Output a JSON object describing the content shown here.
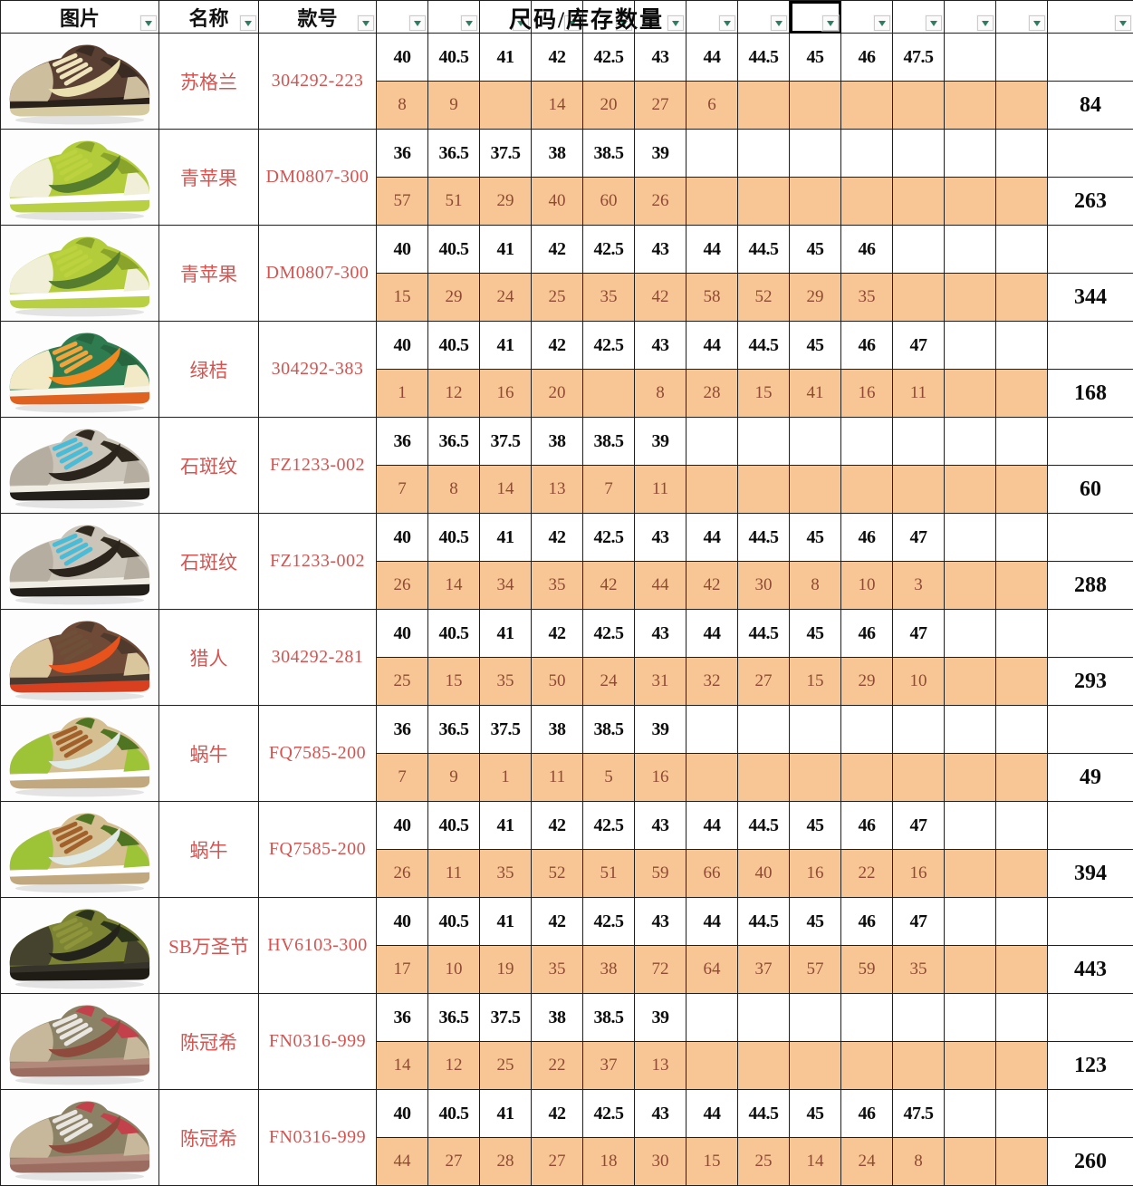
{
  "header": {
    "image_label": "图片",
    "name_label": "名称",
    "code_label": "款号",
    "size_stock_label": "尺码/库存数量"
  },
  "colors": {
    "quantity_bg": "#F8C694",
    "quantity_text": "#8E4A33",
    "label_red": "#D25552",
    "grid_line": "#1f1f1f",
    "dropdown_arrow_green": "#2E7D62"
  },
  "table": {
    "size_column_count": 13,
    "rows": [
      {
        "name": "苏格兰",
        "code": "304292-223",
        "sizes": [
          "40",
          "40.5",
          "41",
          "42",
          "42.5",
          "43",
          "44",
          "44.5",
          "45",
          "46",
          "47.5",
          "",
          ""
        ],
        "qty": [
          "8",
          "9",
          "",
          "14",
          "20",
          "27",
          "6",
          "",
          "",
          "",
          "",
          "",
          ""
        ],
        "total": "84",
        "shoe": {
          "body": "#5A4032",
          "panel": "#CDBF9E",
          "swoosh": "#EADFAE",
          "lace": "#EFE3BC",
          "mid": "#2A211B",
          "out": "#D6CBA0",
          "collar": "#3A2C23"
        }
      },
      {
        "name": "青苹果",
        "code": "DM0807-300",
        "sizes": [
          "36",
          "36.5",
          "37.5",
          "38",
          "38.5",
          "39",
          "",
          "",
          "",
          "",
          "",
          "",
          ""
        ],
        "qty": [
          "57",
          "51",
          "29",
          "40",
          "60",
          "26",
          "",
          "",
          "",
          "",
          "",
          "",
          ""
        ],
        "total": "263",
        "shoe": {
          "body": "#B3CC39",
          "panel": "#F2EFD9",
          "swoosh": "#567D2E",
          "lace": "#BCD23F",
          "mid": "#FFFFFF",
          "out": "#B9D044",
          "collar": "#89A32B"
        }
      },
      {
        "name": "青苹果",
        "code": "DM0807-300",
        "sizes": [
          "40",
          "40.5",
          "41",
          "42",
          "42.5",
          "43",
          "44",
          "44.5",
          "45",
          "46",
          "",
          "",
          ""
        ],
        "qty": [
          "15",
          "29",
          "24",
          "25",
          "35",
          "42",
          "58",
          "52",
          "29",
          "35",
          "",
          "",
          ""
        ],
        "total": "344",
        "shoe": {
          "body": "#B3CC39",
          "panel": "#F2EFD9",
          "swoosh": "#567D2E",
          "lace": "#BCD23F",
          "mid": "#FFFFFF",
          "out": "#B9D044",
          "collar": "#89A32B"
        }
      },
      {
        "name": "绿桔",
        "code": "304292-383",
        "sizes": [
          "40",
          "40.5",
          "41",
          "42",
          "42.5",
          "43",
          "44",
          "44.5",
          "45",
          "46",
          "47",
          "",
          ""
        ],
        "qty": [
          "1",
          "12",
          "16",
          "20",
          "",
          "8",
          "28",
          "15",
          "41",
          "16",
          "11",
          "",
          ""
        ],
        "total": "168",
        "shoe": {
          "body": "#2F7C50",
          "panel": "#F2E9C6",
          "swoosh": "#F28A1F",
          "lace": "#F2A43C",
          "mid": "#F7F4E8",
          "out": "#E06220",
          "collar": "#27663F"
        }
      },
      {
        "name": "石斑纹",
        "code": "FZ1233-002",
        "sizes": [
          "36",
          "36.5",
          "37.5",
          "38",
          "38.5",
          "39",
          "",
          "",
          "",
          "",
          "",
          "",
          ""
        ],
        "qty": [
          "7",
          "8",
          "14",
          "13",
          "7",
          "11",
          "",
          "",
          "",
          "",
          "",
          "",
          ""
        ],
        "total": "60",
        "shoe": {
          "body": "#CBC4B8",
          "panel": "#B5ADA0",
          "swoosh": "#2B241D",
          "lace": "#49BCD8",
          "mid": "#F0EDE5",
          "out": "#221E19",
          "collar": "#30291F"
        }
      },
      {
        "name": "石斑纹",
        "code": "FZ1233-002",
        "sizes": [
          "40",
          "40.5",
          "41",
          "42",
          "42.5",
          "43",
          "44",
          "44.5",
          "45",
          "46",
          "47",
          "",
          ""
        ],
        "qty": [
          "26",
          "14",
          "34",
          "35",
          "42",
          "44",
          "42",
          "30",
          "8",
          "10",
          "3",
          "",
          ""
        ],
        "total": "288",
        "shoe": {
          "body": "#CBC4B8",
          "panel": "#B5ADA0",
          "swoosh": "#2B241D",
          "lace": "#49BCD8",
          "mid": "#F0EDE5",
          "out": "#221E19",
          "collar": "#30291F"
        }
      },
      {
        "name": "猎人",
        "code": "304292-281",
        "sizes": [
          "40",
          "40.5",
          "41",
          "42",
          "42.5",
          "43",
          "44",
          "44.5",
          "45",
          "46",
          "47",
          "",
          ""
        ],
        "qty": [
          "25",
          "15",
          "35",
          "50",
          "24",
          "31",
          "32",
          "27",
          "15",
          "29",
          "10",
          "",
          ""
        ],
        "total": "293",
        "shoe": {
          "body": "#6E4A37",
          "panel": "#D9C69C",
          "swoosh": "#E8521D",
          "lace": "#6E5038",
          "mid": "#4A392E",
          "out": "#D8401F",
          "collar": "#503A2C"
        }
      },
      {
        "name": "蜗牛",
        "code": "FQ7585-200",
        "sizes": [
          "36",
          "36.5",
          "37.5",
          "38",
          "38.5",
          "39",
          "",
          "",
          "",
          "",
          "",
          "",
          ""
        ],
        "qty": [
          "7",
          "9",
          "1",
          "11",
          "5",
          "16",
          "",
          "",
          "",
          "",
          "",
          "",
          ""
        ],
        "total": "49",
        "shoe": {
          "body": "#D5BE8F",
          "panel": "#9DC437",
          "swoosh": "#DFE9E6",
          "lace": "#A2602B",
          "mid": "#FFFFFF",
          "out": "#C2A87E",
          "collar": "#4F7422"
        }
      },
      {
        "name": "蜗牛",
        "code": "FQ7585-200",
        "sizes": [
          "40",
          "40.5",
          "41",
          "42",
          "42.5",
          "43",
          "44",
          "44.5",
          "45",
          "46",
          "47",
          "",
          ""
        ],
        "qty": [
          "26",
          "11",
          "35",
          "52",
          "51",
          "59",
          "66",
          "40",
          "16",
          "22",
          "16",
          "",
          ""
        ],
        "total": "394",
        "shoe": {
          "body": "#D5BE8F",
          "panel": "#9DC437",
          "swoosh": "#DFE9E6",
          "lace": "#A2602B",
          "mid": "#FFFFFF",
          "out": "#C2A87E",
          "collar": "#4F7422"
        }
      },
      {
        "name": "SB万圣节",
        "code": "HV6103-300",
        "sizes": [
          "40",
          "40.5",
          "41",
          "42",
          "42.5",
          "43",
          "44",
          "44.5",
          "45",
          "46",
          "47",
          "",
          ""
        ],
        "qty": [
          "17",
          "10",
          "19",
          "35",
          "38",
          "72",
          "64",
          "37",
          "57",
          "59",
          "35",
          "",
          ""
        ],
        "total": "443",
        "shoe": {
          "body": "#7C8434",
          "panel": "#45432E",
          "swoosh": "#23221B",
          "lace": "#8D9439",
          "mid": "#35332A",
          "out": "#1E1C15",
          "collar": "#2C331B"
        }
      },
      {
        "name": "陈冠希",
        "code": "FN0316-999",
        "sizes": [
          "36",
          "36.5",
          "37.5",
          "38",
          "38.5",
          "39",
          "",
          "",
          "",
          "",
          "",
          "",
          ""
        ],
        "qty": [
          "14",
          "12",
          "25",
          "22",
          "37",
          "13",
          "",
          "",
          "",
          "",
          "",
          "",
          ""
        ],
        "total": "123",
        "shoe": {
          "body": "#8B8266",
          "panel": "#C8B89B",
          "swoosh": "#8E4B3D",
          "lace": "#E9E6E2",
          "mid": "#B18A7B",
          "out": "#9C6C60",
          "collar": "#C2414B"
        }
      },
      {
        "name": "陈冠希",
        "code": "FN0316-999",
        "sizes": [
          "40",
          "40.5",
          "41",
          "42",
          "42.5",
          "43",
          "44",
          "44.5",
          "45",
          "46",
          "47.5",
          "",
          ""
        ],
        "qty": [
          "44",
          "27",
          "28",
          "27",
          "18",
          "30",
          "15",
          "25",
          "14",
          "24",
          "8",
          "",
          ""
        ],
        "total": "260",
        "shoe": {
          "body": "#8B8266",
          "panel": "#C8B89B",
          "swoosh": "#8E4B3D",
          "lace": "#E9E6E2",
          "mid": "#B18A7B",
          "out": "#9C6C60",
          "collar": "#C2414B"
        }
      }
    ]
  }
}
